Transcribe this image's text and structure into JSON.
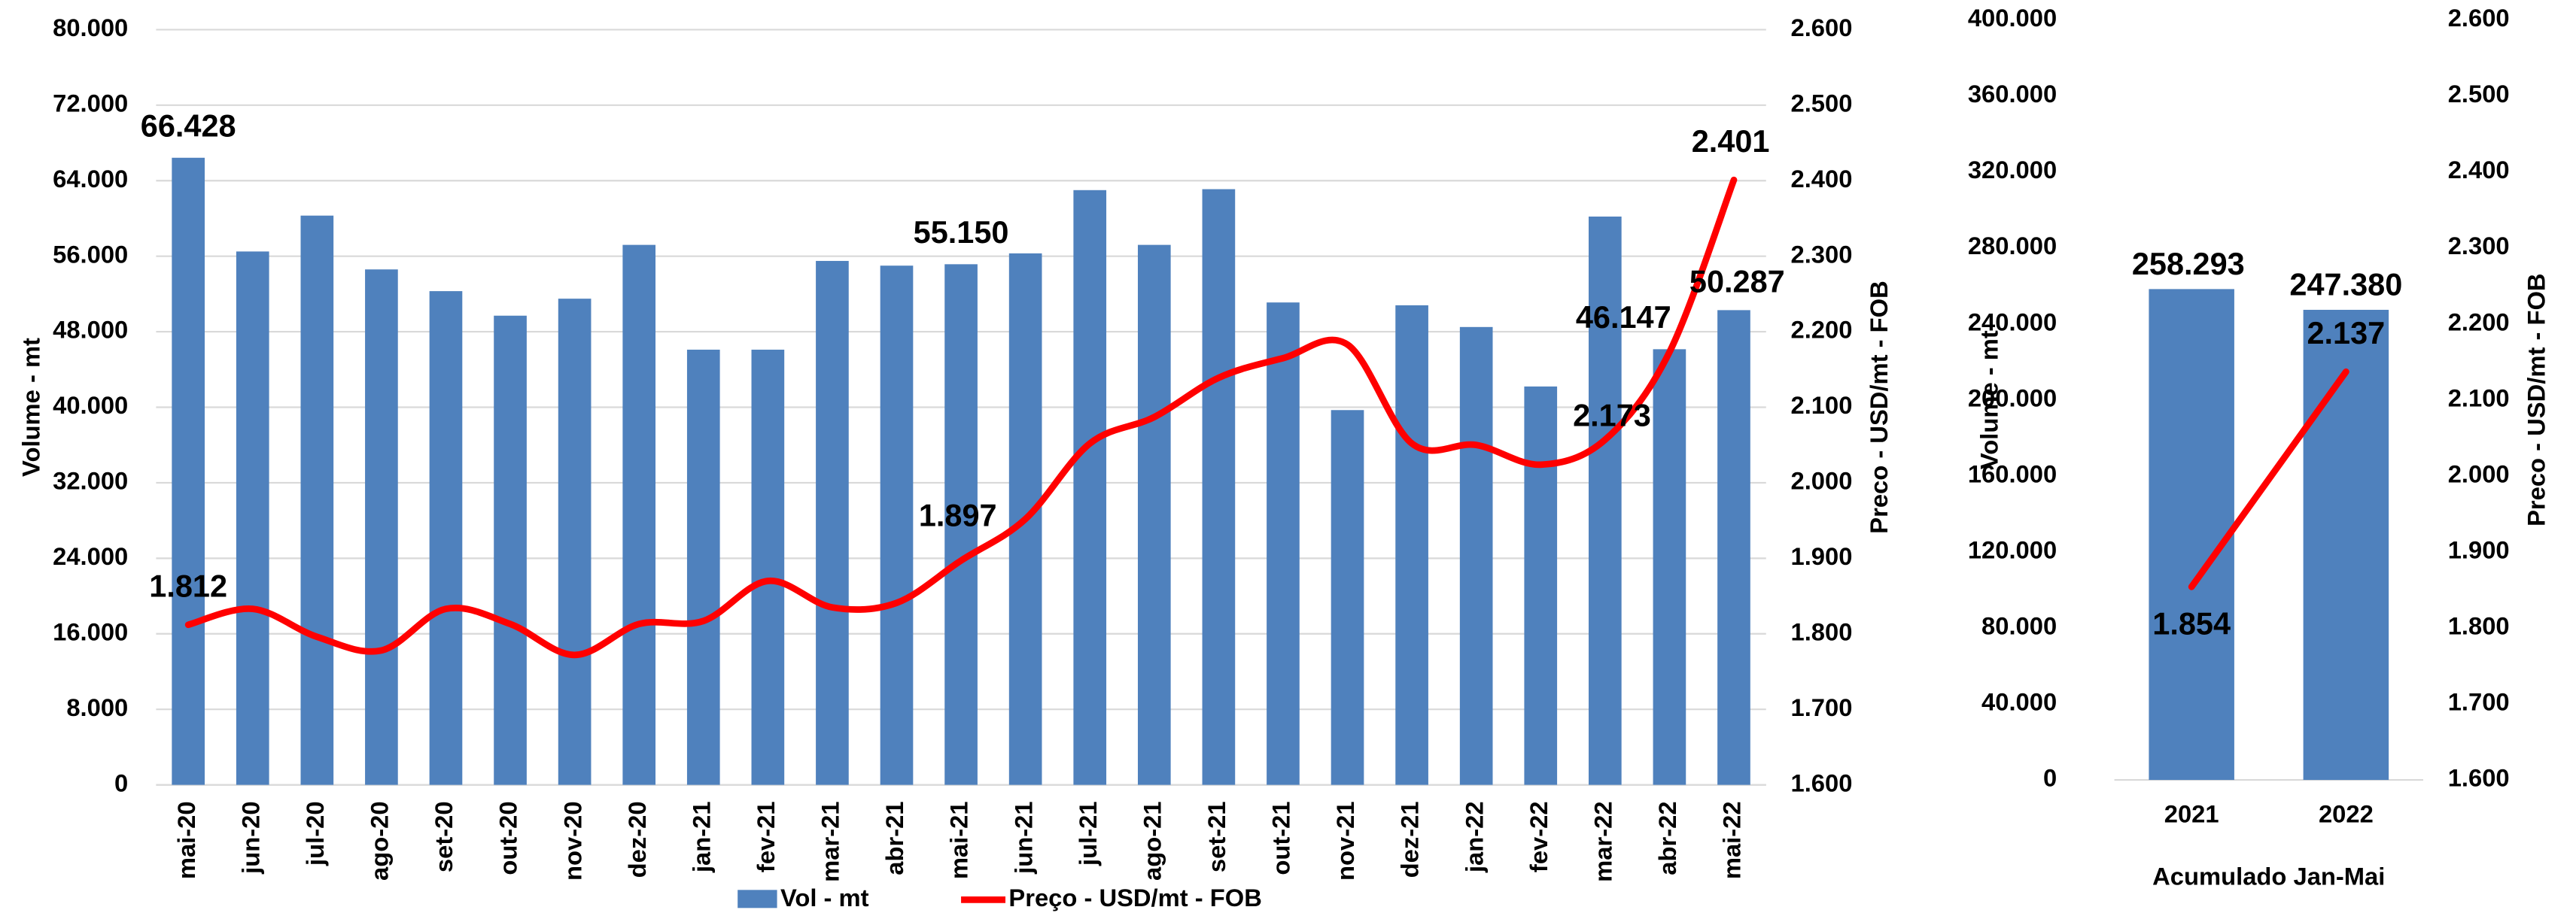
{
  "chart_data": [
    {
      "type": "combo",
      "y_axis_title": "Volume - mt",
      "y2_axis_title": "Preco - USD/mt - FOB",
      "categories": [
        "mai-20",
        "jun-20",
        "jul-20",
        "ago-20",
        "set-20",
        "out-20",
        "nov-20",
        "dez-20",
        "jan-21",
        "fev-21",
        "mar-21",
        "abr-21",
        "mai-21",
        "jun-21",
        "jul-21",
        "ago-21",
        "set-21",
        "out-21",
        "nov-21",
        "dez-21",
        "jan-22",
        "fev-22",
        "mar-22",
        "abr-22",
        "mai-22"
      ],
      "series": [
        {
          "name": "Vol - mt",
          "color": "#4f81bd",
          "kind": "bar",
          "values": [
            66428,
            56500,
            60300,
            54600,
            52300,
            49700,
            51500,
            57200,
            46100,
            46100,
            55500,
            55000,
            55150,
            56300,
            63000,
            57200,
            63100,
            51100,
            39700,
            50800,
            48500,
            42200,
            60200,
            46147,
            50287
          ],
          "value_labels": [
            "66.428",
            null,
            null,
            null,
            null,
            null,
            null,
            null,
            null,
            null,
            null,
            null,
            "55.150",
            null,
            null,
            null,
            null,
            null,
            null,
            null,
            null,
            null,
            null,
            "46.147",
            "50.287"
          ]
        },
        {
          "name": "Preço - USD/mt - FOB",
          "color": "#ff0000",
          "kind": "line",
          "axis": "y2",
          "smooth": true,
          "values": [
            1812,
            1833,
            1796,
            1778,
            1833,
            1813,
            1772,
            1813,
            1817,
            1870,
            1835,
            1841,
            1897,
            1952,
            2052,
            2087,
            2139,
            2165,
            2183,
            2052,
            2050,
            2024,
            2057,
            2173,
            2401
          ],
          "value_labels": [
            "1.812",
            null,
            null,
            null,
            null,
            null,
            null,
            null,
            null,
            null,
            null,
            null,
            "1.897",
            null,
            null,
            null,
            null,
            null,
            null,
            null,
            null,
            null,
            null,
            "2.173",
            "2.401"
          ]
        }
      ],
      "ylim": [
        0,
        80000
      ],
      "yticks": [
        0,
        {
          "value": 8000,
          "label": "8.000"
        },
        {
          "value": 16000,
          "label": "16.000"
        },
        {
          "value": 24000,
          "label": "24.000"
        },
        {
          "value": 32000,
          "label": "32.000"
        },
        {
          "value": 40000,
          "label": "40.000"
        },
        {
          "value": 48000,
          "label": "48.000"
        },
        {
          "value": 56000,
          "label": "56.000"
        },
        {
          "value": 64000,
          "label": "64.000"
        },
        {
          "value": 72000,
          "label": "72.000"
        },
        {
          "value": 80000,
          "label": "80.000"
        }
      ],
      "y2lim": [
        1600,
        2600
      ],
      "y2ticks": [
        {
          "value": 1600,
          "label": "1.600"
        },
        {
          "value": 1700,
          "label": "1.700"
        },
        {
          "value": 1800,
          "label": "1.800"
        },
        {
          "value": 1900,
          "label": "1.900"
        },
        {
          "value": 2000,
          "label": "2.000"
        },
        {
          "value": 2100,
          "label": "2.100"
        },
        {
          "value": 2200,
          "label": "2.200"
        },
        {
          "value": 2300,
          "label": "2.300"
        },
        {
          "value": 2400,
          "label": "2.400"
        },
        {
          "value": 2500,
          "label": "2.500"
        },
        {
          "value": 2600,
          "label": "2.600"
        }
      ],
      "grid": true,
      "legend": "bottom"
    },
    {
      "type": "combo",
      "x_axis_title": "Acumulado Jan-Mai",
      "y_axis_title": "Volume - mt",
      "y2_axis_title": "Preco - USD/mt - FOB",
      "categories": [
        "2021",
        "2022"
      ],
      "series": [
        {
          "color": "#4f81bd",
          "kind": "bar",
          "values": [
            258293,
            247380
          ],
          "value_labels": [
            "258.293",
            "247.380"
          ]
        },
        {
          "color": "#ff0000",
          "kind": "line",
          "axis": "y2",
          "smooth": false,
          "values": [
            1854,
            2137
          ],
          "value_labels": [
            "1.854",
            "2.137"
          ]
        }
      ],
      "ylim": [
        0,
        400000
      ],
      "yticks": [
        0,
        {
          "value": 40000,
          "label": "40.000"
        },
        {
          "value": 80000,
          "label": "80.000"
        },
        {
          "value": 120000,
          "label": "120.000"
        },
        {
          "value": 160000,
          "label": "160.000"
        },
        {
          "value": 200000,
          "label": "200.000"
        },
        {
          "value": 240000,
          "label": "240.000"
        },
        {
          "value": 280000,
          "label": "280.000"
        },
        {
          "value": 320000,
          "label": "320.000"
        },
        {
          "value": 360000,
          "label": "360.000"
        },
        {
          "value": 400000,
          "label": "400.000"
        }
      ],
      "y2lim": [
        1600,
        2600
      ],
      "y2ticks": [
        {
          "value": 1600,
          "label": "1.600"
        },
        {
          "value": 1700,
          "label": "1.700"
        },
        {
          "value": 1800,
          "label": "1.800"
        },
        {
          "value": 1900,
          "label": "1.900"
        },
        {
          "value": 2000,
          "label": "2.000"
        },
        {
          "value": 2100,
          "label": "2.100"
        },
        {
          "value": 2200,
          "label": "2.200"
        },
        {
          "value": 2300,
          "label": "2.300"
        },
        {
          "value": 2400,
          "label": "2.400"
        },
        {
          "value": 2500,
          "label": "2.500"
        },
        {
          "value": 2600,
          "label": "2.600"
        }
      ],
      "grid": false
    }
  ]
}
